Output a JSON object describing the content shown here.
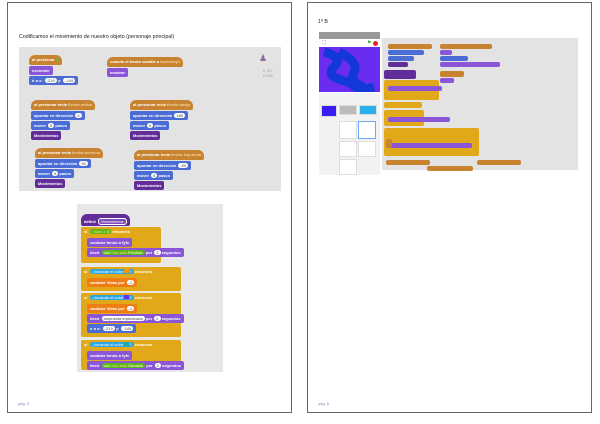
{
  "page1": {
    "heading": "Codificamos el movimiento de nuestro objeto (personaje principal)",
    "footer": "pág. 5",
    "script1": {
      "green_flag": [
        "al presionar",
        "esconder",
        "ir a x:",
        "-219",
        "y:",
        "-149"
      ],
      "backdrop": [
        "cuando el fondo cambie a",
        "backdrop1",
        "mostrar"
      ],
      "up": [
        "al presionar tecla",
        "flecha arriba",
        "apuntar en dirección",
        "0",
        "mover",
        "5",
        "pasos",
        "Movimientos"
      ],
      "down": [
        "al presionar tecla",
        "flecha abajo",
        "apuntar en dirección",
        "180",
        "mover",
        "5",
        "pasos",
        "Movimientos"
      ],
      "right": [
        "al presionar tecla",
        "flecha derecha",
        "apuntar en dirección",
        "90",
        "mover",
        "5",
        "pasos",
        "Movimientos"
      ],
      "left": [
        "al presionar tecla",
        "flecha izquierda",
        "apuntar en dirección",
        "-90",
        "mover",
        "5",
        "pasos",
        "Movimientos"
      ],
      "sprite_info": [
        "x: 217",
        "y: 159"
      ]
    },
    "script2": {
      "define": [
        "definir",
        "Movimientos"
      ],
      "if1": [
        "si",
        "Vidas",
        "=",
        "0",
        "entonces",
        "cambiar fondo a",
        "fyfv",
        "decir",
        "unir",
        "Has sido",
        "Perdiste",
        "por",
        "2",
        "segundos"
      ],
      "if2": [
        "si",
        "¿tocando el color",
        "?",
        "entonces",
        "cambiar",
        "Vidas",
        "por",
        "-1"
      ],
      "if3": [
        "si",
        "¿tocando el color",
        "?",
        "entonces",
        "cambiar",
        "Vidas",
        "por",
        "-1",
        "decir",
        "respuesta equivocada",
        "por",
        "2",
        "segundos",
        "ir a x:",
        "-219",
        "y:",
        "-149"
      ],
      "if4": [
        "si",
        "¿tocando el color",
        "?",
        "entonces",
        "cambiar fondo a",
        "fyfv",
        "decir",
        "unir",
        "Has sido",
        "Ganaste",
        "por",
        "2",
        "segundos"
      ]
    }
  },
  "page2": {
    "heading": "1º B",
    "footer": "pág. 6"
  },
  "colors": {
    "events": "#c88330",
    "motion": "#4a6cd4",
    "looks": "#8a55d7",
    "more_blocks": "#632d99",
    "control": "#e1a91a",
    "sensing": "#2ca5e2",
    "operators": "#5cb712",
    "stage_bg": "#6a2cf0"
  }
}
